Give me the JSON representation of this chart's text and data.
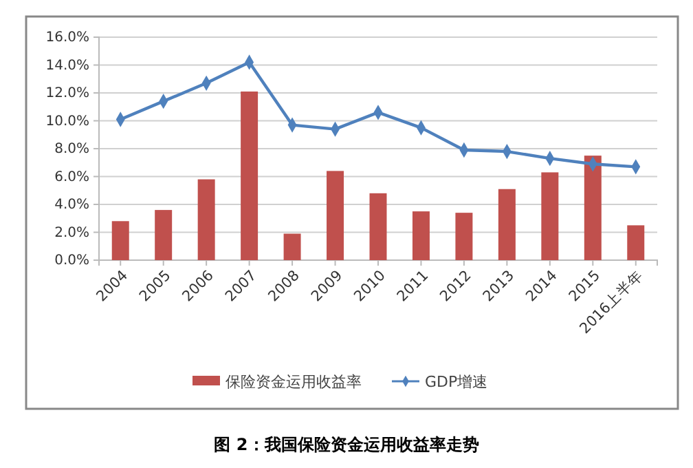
{
  "chart_data": {
    "type": "bar",
    "title": "图 2：我国保险资金运用收益率走势",
    "categories": [
      "2004",
      "2005",
      "2006",
      "2007",
      "2008",
      "2009",
      "2010",
      "2011",
      "2012",
      "2013",
      "2014",
      "2015",
      "2016上半年"
    ],
    "series": [
      {
        "name": "保险资金运用收益率",
        "color": "#c0504d",
        "values": [
          2.8,
          3.6,
          5.8,
          12.1,
          1.9,
          6.4,
          4.8,
          3.5,
          3.4,
          5.1,
          6.3,
          7.5,
          2.5
        ]
      },
      {
        "name": "GDP增速",
        "type": "line",
        "color": "#4f81bd",
        "values": [
          10.1,
          11.4,
          12.7,
          14.2,
          9.7,
          9.4,
          10.6,
          9.5,
          7.9,
          7.8,
          7.3,
          6.9,
          6.7
        ]
      }
    ],
    "ylim": [
      0,
      16
    ],
    "yticks": [
      {
        "value": 0,
        "label": "0.0%"
      },
      {
        "value": 2,
        "label": "2.0%"
      },
      {
        "value": 4,
        "label": "4.0%"
      },
      {
        "value": 6,
        "label": "6.0%"
      },
      {
        "value": 8,
        "label": "8.0%"
      },
      {
        "value": 10,
        "label": "10.0%"
      },
      {
        "value": 12,
        "label": "12.0%"
      },
      {
        "value": 14,
        "label": "14.0%"
      },
      {
        "value": 16,
        "label": "16.0%"
      }
    ],
    "grid": "y",
    "legend": "bottom",
    "marker": "diamond",
    "line_style": "solid"
  }
}
